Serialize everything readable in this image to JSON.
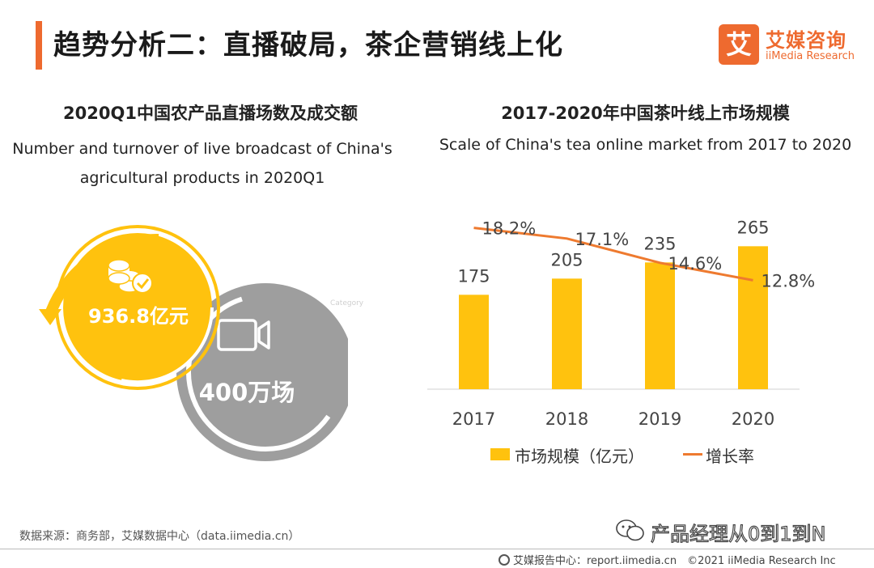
{
  "header": {
    "title": "趋势分析二：直播破局，茶企营销线上化",
    "logo_mark": "艾",
    "logo_cn": "艾媒咨询",
    "logo_en": "iiMedia Research"
  },
  "left_panel": {
    "title": "2020Q1中国农产品直播场数及成交额",
    "subtitle_line1": "Number and turnover of live broadcast of China's",
    "subtitle_line2": "agricultural products in 2020Q1",
    "turnover_label": "936.8亿元",
    "sessions_label": "400万场",
    "watermark": "Category",
    "colors": {
      "gold": "#ffc20e",
      "gray": "#9e9e9e"
    },
    "icons": [
      "coins-check-icon",
      "video-camera-icon"
    ]
  },
  "right_panel": {
    "title": "2017-2020年中国茶叶线上市场规模",
    "subtitle": "Scale of China's tea online market from 2017 to 2020"
  },
  "chart_data": {
    "type": "bar",
    "categories": [
      "2017",
      "2018",
      "2019",
      "2020"
    ],
    "series": [
      {
        "name": "市场规模（亿元）",
        "type": "bar",
        "values": [
          175,
          205,
          235,
          265
        ],
        "labels": [
          "175",
          "205",
          "235",
          "265"
        ],
        "color": "#ffc20e"
      },
      {
        "name": "增长率",
        "type": "line",
        "values": [
          18.2,
          17.1,
          14.6,
          12.8
        ],
        "labels": [
          "18.2%",
          "17.1%",
          "14.6%",
          "12.8%"
        ],
        "color": "#ee7a2f"
      }
    ],
    "legend_position": "bottom",
    "grid": false
  },
  "legend": {
    "bar_label": "市场规模（亿元）",
    "line_label": "增长率"
  },
  "footer": {
    "source": "数据来源：商务部，艾媒数据中心（data.iimedia.cn）",
    "wechat": "产品经理从0到1到N",
    "copyright": "艾媒报告中心：report.iimedia.cn　©2021  iiMedia Research  Inc"
  }
}
